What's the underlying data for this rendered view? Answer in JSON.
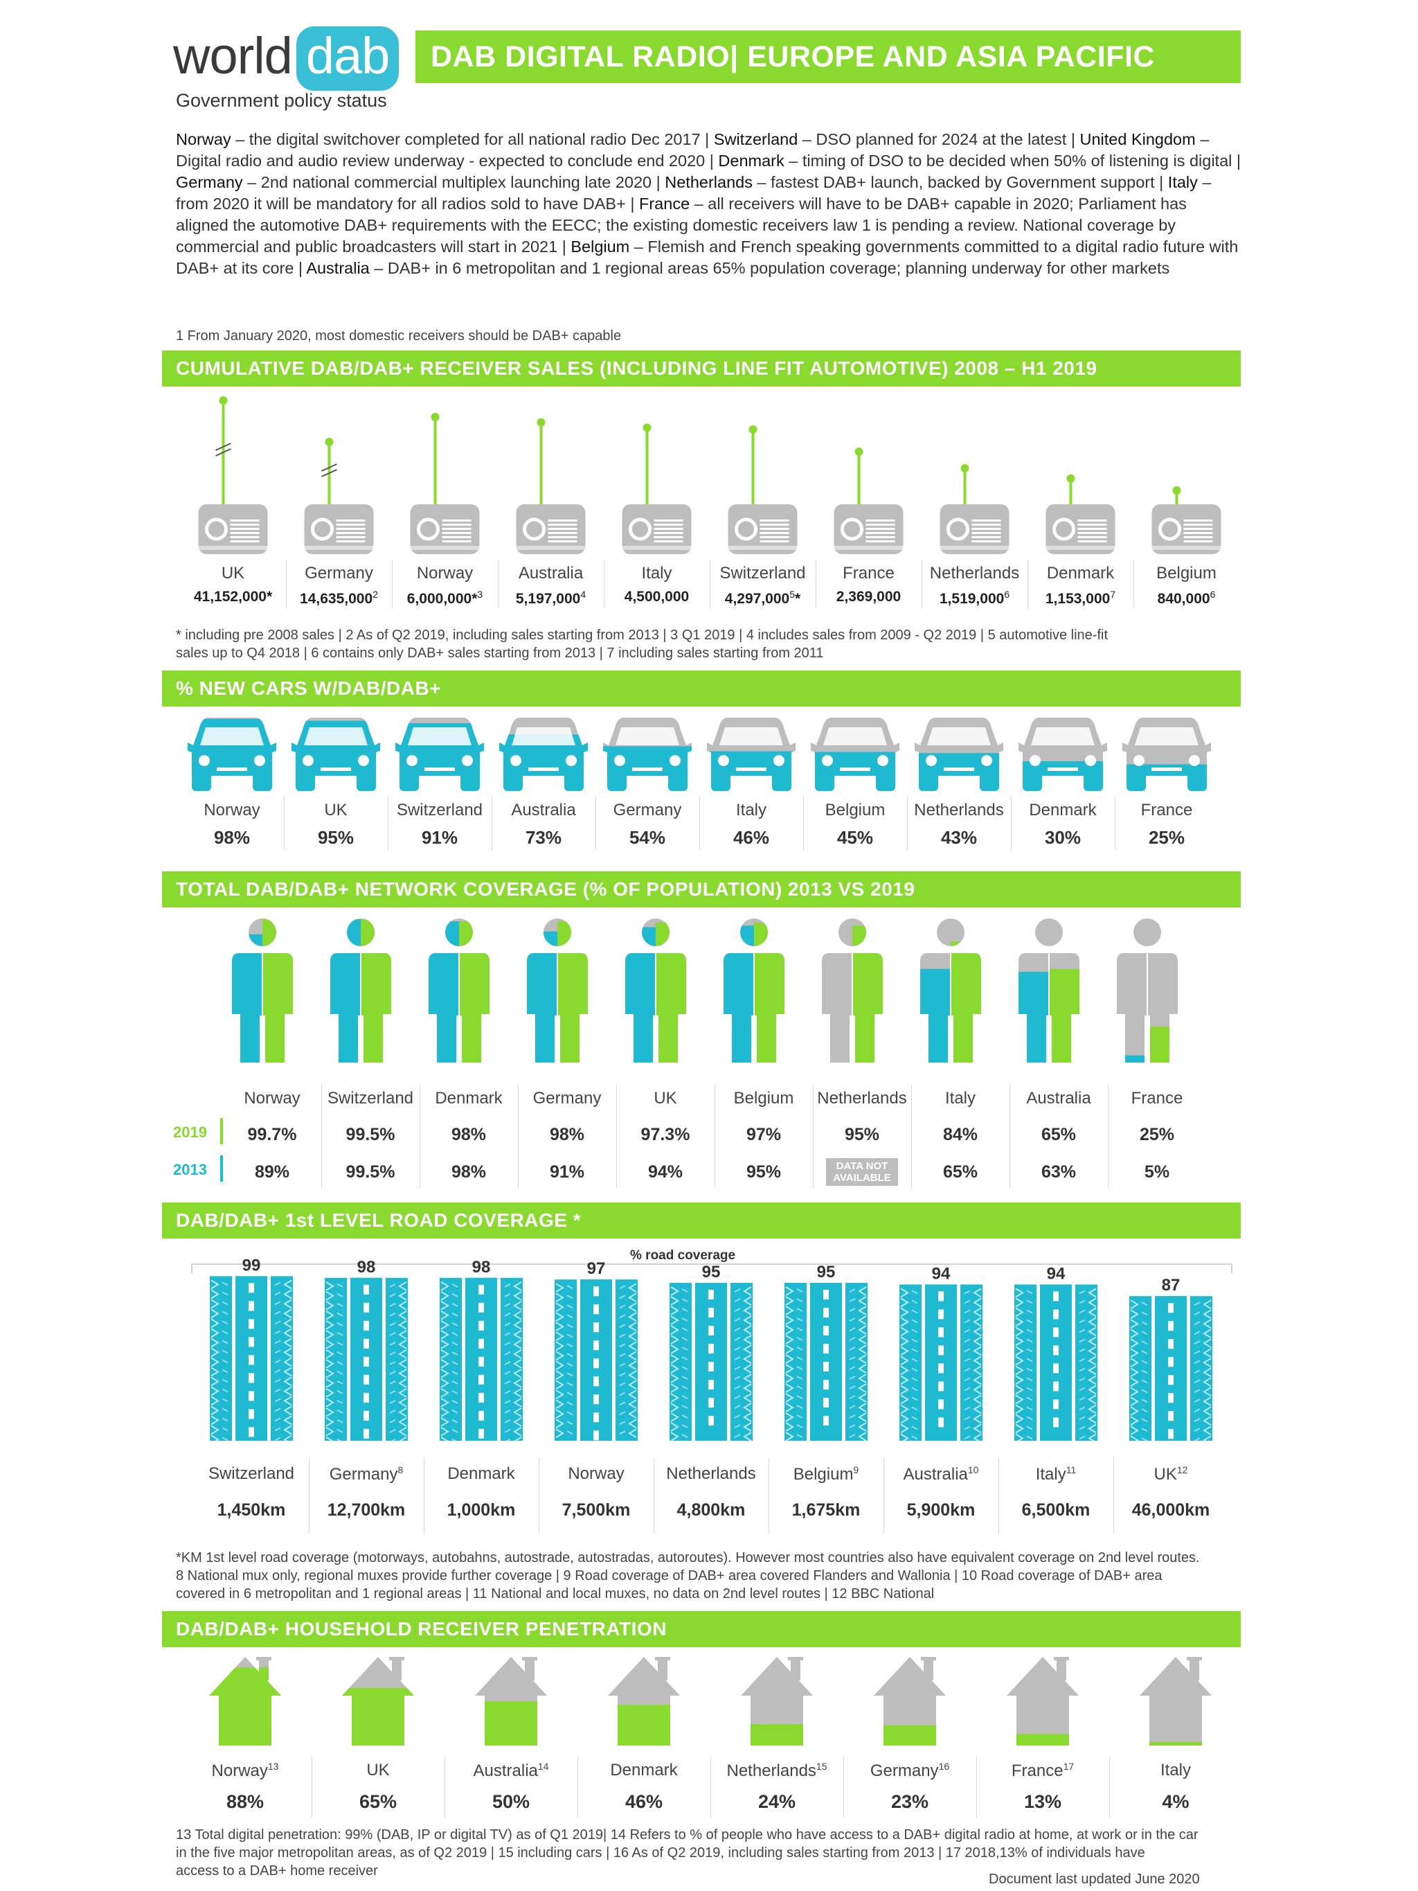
{
  "header": {
    "logo_world": "world",
    "logo_dab": "dab",
    "logo_subtitle": "Government policy status",
    "title": "DAB DIGITAL RADIO| EUROPE AND ASIA PACIFIC"
  },
  "policy": [
    {
      "country": "Norway",
      "text": " –  the digital switchover completed for all national radio Dec 2017  |  "
    },
    {
      "country": "Switzerland",
      "text": " – DSO planned for 2024 at the latest  |  "
    },
    {
      "country": "United Kingdom",
      "text": " – Digital radio and audio review underway - expected to conclude end 2020 |  "
    },
    {
      "country": "Denmark",
      "text": " – timing of DSO to be decided when 50% of listening is digital  |  "
    },
    {
      "country": "Germany",
      "text": " – 2nd national commercial multiplex launching late 2020 |  "
    },
    {
      "country": "Netherlands",
      "text": " – fastest DAB+ launch, backed by Government support  |  "
    },
    {
      "country": "Italy",
      "text": " – from 2020 it will be mandatory for all radios sold to have DAB+  |  "
    },
    {
      "country": "France",
      "text": " –  all receivers will have to be DAB+ capable in 2020; Parliament has aligned the automotive DAB+ requirements with the EECC; the existing domestic receivers law 1 is pending a review. National coverage by commercial and public broadcasters will start in 2021  |  "
    },
    {
      "country": "Belgium",
      "text": " – Flemish and French speaking governments committed to a digital radio future with DAB+ at its core  |  "
    },
    {
      "country": "Australia",
      "text": " – DAB+ in 6 metropolitan and 1 regional areas 65% population coverage; planning underway for other markets"
    }
  ],
  "policy_footnote": "1 From January 2020, most domestic receivers should be DAB+ capable",
  "sales": {
    "title": "CUMULATIVE DAB/DAB+ RECEIVER SALES (INCLUDING LINE FIT AUTOMOTIVE) 2008 – H1 2019",
    "footnote_1": "* including pre 2008 sales   | 2 As of Q2 2019, including sales starting from 2013 | 3 Q1 2019 |  4  includes sales from 2009 - Q2 2019 | 5 automotive line-fit",
    "footnote_2": "sales up to Q4 2018 |  6 contains only DAB+ sales starting from 2013 |  7 including sales starting from 2011"
  },
  "cars": {
    "title": "% NEW CARS W/DAB/DAB+"
  },
  "coverage": {
    "title": "TOTAL DAB/DAB+ NETWORK COVERAGE (% OF POPULATION) 2013 VS 2019",
    "legend_2019": "2019",
    "legend_2013": "2013",
    "not_available_1": "DATA NOT",
    "not_available_2": "AVAILABLE"
  },
  "road": {
    "title": "DAB/DAB+ 1st LEVEL ROAD COVERAGE *",
    "axis_label": "% road coverage",
    "footnote_1": "*KM 1st level road coverage (motorways, autobahns, autostrade, autostradas, autoroutes). However most countries also have equivalent coverage on 2nd level routes.",
    "footnote_2": "8 National mux only, regional muxes provide further coverage  | 9 Road coverage of DAB+ area covered Flanders and Wallonia |  10 Road coverage of DAB+ area",
    "footnote_3": "covered in 6 metropolitan and 1 regional areas |  11 National and local muxes, no data on 2nd level routes |  12 BBC National"
  },
  "household": {
    "title": "DAB/DAB+ HOUSEHOLD RECEIVER PENETRATION",
    "footnote_1": "13 Total digital penetration: 99% (DAB, IP or digital TV)  as of Q1 2019| 14 Refers to % of people who have access to a DAB+ digital radio at home, at work or in the car",
    "footnote_2": "in the five major metropolitan areas, as of Q2 2019 | 15 including cars | 16 As of Q2 2019, including sales starting from 2013 | 17  2018,13% of individuals have",
    "footnote_3": "access to a DAB+ home receiver",
    "updated": "Document last updated June 2020"
  },
  "colors": {
    "green": "#8ad92f",
    "blue": "#1fb9d2",
    "grey": "#bdbdbd"
  },
  "chart_data": [
    {
      "type": "bar",
      "title": "CUMULATIVE DAB/DAB+ RECEIVER SALES (INCLUDING LINE FIT AUTOMOTIVE) 2008 – H1 2019",
      "categories": [
        "UK",
        "Germany",
        "Norway",
        "Australia",
        "Italy",
        "Switzerland",
        "France",
        "Netherlands",
        "Denmark",
        "Belgium"
      ],
      "values": [
        41152000,
        14635000,
        6000000,
        5197000,
        4500000,
        4297000,
        2369000,
        1519000,
        1153000,
        840000
      ],
      "labels": [
        "41,152,000*",
        "14,635,000",
        "6,000,000*",
        "5,197,000",
        "4,500,000",
        "4,297,000",
        "2,369,000",
        "1,519,000",
        "1,153,000",
        "840,000"
      ],
      "marks": [
        "",
        "2",
        "3",
        "4",
        "",
        "5",
        "",
        "6",
        "7",
        "6"
      ],
      "tails": [
        "",
        "",
        "",
        "",
        "",
        "*",
        "",
        "",
        "",
        ""
      ]
    },
    {
      "type": "bar",
      "title": "% NEW CARS W/DAB/DAB+",
      "categories": [
        "Norway",
        "UK",
        "Switzerland",
        "Australia",
        "Germany",
        "Italy",
        "Belgium",
        "Netherlands",
        "Denmark",
        "France"
      ],
      "values": [
        98,
        95,
        91,
        73,
        54,
        46,
        45,
        43,
        30,
        25
      ],
      "labels": [
        "98%",
        "95%",
        "91%",
        "73%",
        "54%",
        "46%",
        "45%",
        "43%",
        "30%",
        "25%"
      ]
    },
    {
      "type": "bar",
      "title": "TOTAL DAB/DAB+ NETWORK COVERAGE (% OF POPULATION) 2013 VS 2019",
      "categories": [
        "Norway",
        "Switzerland",
        "Denmark",
        "Germany",
        "UK",
        "Belgium",
        "Netherlands",
        "Italy",
        "Australia",
        "France"
      ],
      "series": [
        {
          "name": "2019",
          "values": [
            99.7,
            99.5,
            98,
            98,
            97.3,
            97,
            95,
            84,
            65,
            25
          ],
          "labels": [
            "99.7%",
            "99.5%",
            "98%",
            "98%",
            "97.3%",
            "97%",
            "95%",
            "84%",
            "65%",
            "25%"
          ]
        },
        {
          "name": "2013",
          "values": [
            89,
            99.5,
            98,
            91,
            94,
            95,
            null,
            65,
            63,
            5
          ],
          "labels": [
            "89%",
            "99.5%",
            "98%",
            "91%",
            "94%",
            "95%",
            "",
            "65%",
            "63%",
            "5%"
          ]
        }
      ],
      "legend": "left"
    },
    {
      "type": "bar",
      "title": "DAB/DAB+ 1st LEVEL ROAD COVERAGE *",
      "ylabel": "% road coverage",
      "categories": [
        "Switzerland",
        "Germany",
        "Denmark",
        "Norway",
        "Netherlands",
        "Belgium",
        "Australia",
        "Italy",
        "UK"
      ],
      "marks": [
        "",
        "8",
        "",
        "",
        "",
        "9",
        "10",
        "11",
        "12"
      ],
      "values": [
        99,
        98,
        98,
        97,
        95,
        95,
        94,
        94,
        87
      ],
      "km": [
        "1,450km",
        "12,700km",
        "1,000km",
        "7,500km",
        "4,800km",
        "1,675km",
        "5,900km",
        "6,500km",
        "46,000km"
      ]
    },
    {
      "type": "bar",
      "title": "DAB/DAB+ HOUSEHOLD RECEIVER PENETRATION",
      "categories": [
        "Norway",
        "UK",
        "Australia",
        "Denmark",
        "Netherlands",
        "Germany",
        "France",
        "Italy"
      ],
      "marks": [
        "13",
        "",
        "14",
        "",
        "15",
        "16",
        "17",
        ""
      ],
      "values": [
        88,
        65,
        50,
        46,
        24,
        23,
        13,
        4
      ],
      "labels": [
        "88%",
        "65%",
        "50%",
        "46%",
        "24%",
        "23%",
        "13%",
        "4%"
      ]
    }
  ]
}
